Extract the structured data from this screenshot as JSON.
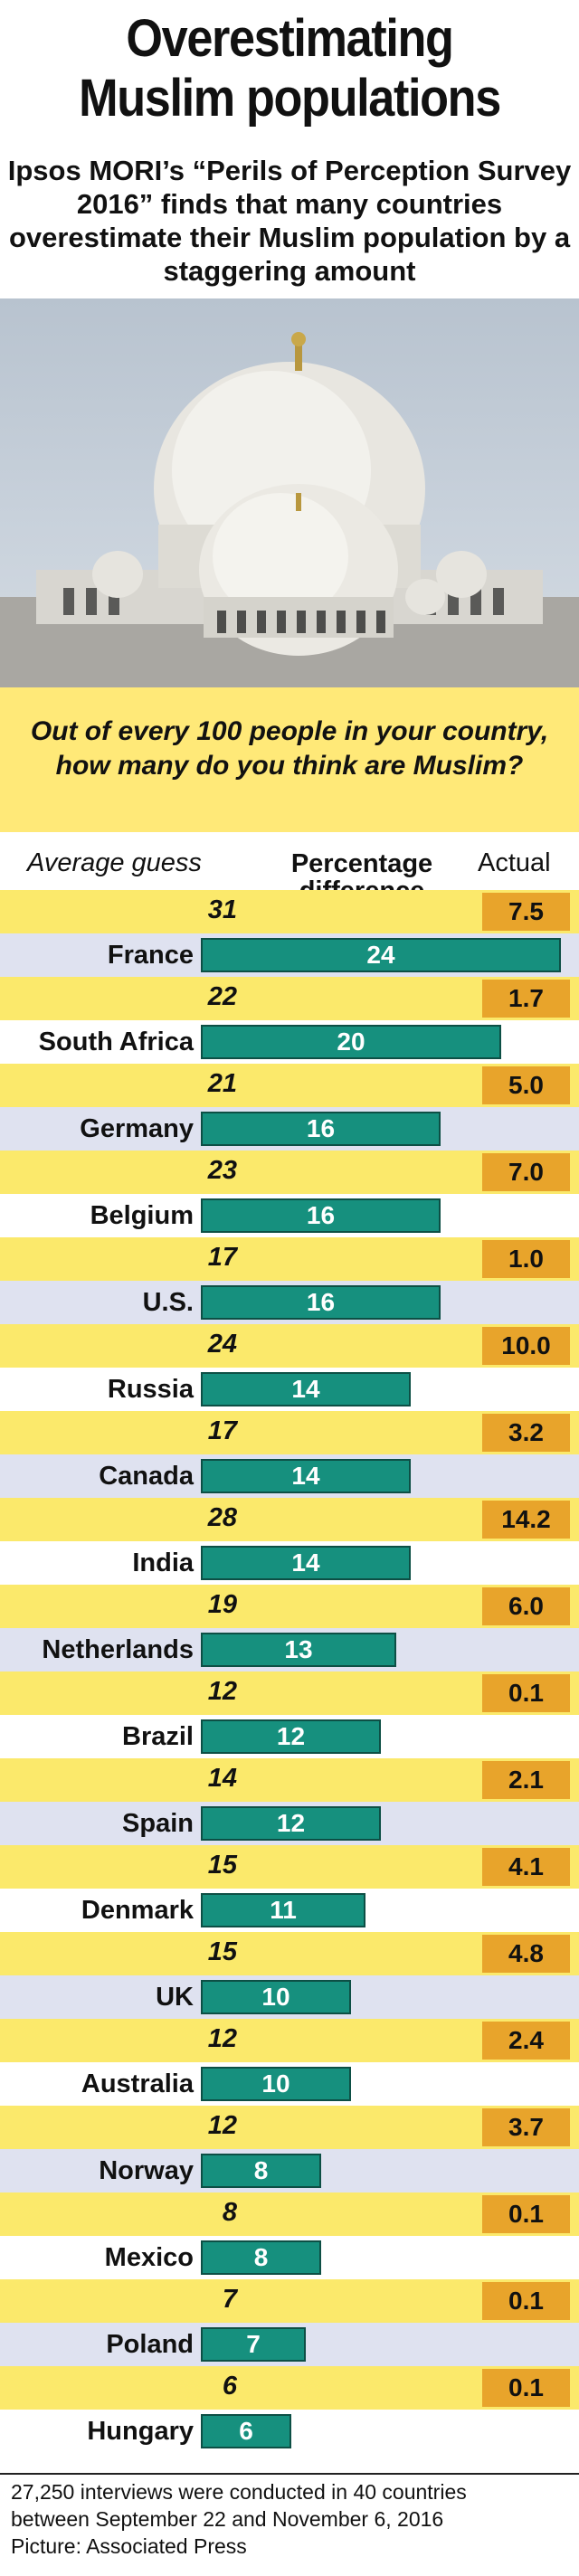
{
  "title_line1": "Overestimating",
  "title_line2": "Muslim populations",
  "subtitle": "Ipsos MORI’s “Perils of Perception Survey 2016” finds that many countries overestimate their Muslim population by a staggering amount",
  "question": "Out of every 100 people in your country, how many do you think are Muslim?",
  "photo_icon": "mosque-dome-photo",
  "colors": {
    "bar": "#16907e",
    "actual": "#e8a42b",
    "guess_row": "#fbe96b",
    "country_row": "#dfe2f0"
  },
  "chart_data": {
    "type": "bar",
    "columns": {
      "guess": "Average guess",
      "difference": "Percentage difference",
      "actual": "Actual"
    },
    "categories": [
      "France",
      "South Africa",
      "Germany",
      "Belgium",
      "U.S.",
      "Russia",
      "Canada",
      "India",
      "Netherlands",
      "Brazil",
      "Spain",
      "Denmark",
      "UK",
      "Australia",
      "Norway",
      "Mexico",
      "Poland",
      "Hungary"
    ],
    "guess": [
      "31",
      "22",
      "21",
      "23",
      "17",
      "24",
      "17",
      "28",
      "19",
      "12",
      "14",
      "15",
      "15",
      "12",
      "12",
      "8",
      "7",
      "6"
    ],
    "difference": [
      24,
      20,
      16,
      16,
      16,
      14,
      14,
      14,
      13,
      12,
      12,
      11,
      10,
      10,
      8,
      8,
      7,
      6
    ],
    "actual": [
      "7.5",
      "1.7",
      "5.0",
      "7.0",
      "1.0",
      "10.0",
      "3.2",
      "14.2",
      "6.0",
      "0.1",
      "2.1",
      "4.1",
      "4.8",
      "2.4",
      "3.7",
      "0.1",
      "0.1",
      "0.1"
    ],
    "xlim": [
      0,
      24
    ]
  },
  "footer": {
    "line1": "27,250 interviews were conducted in 40 countries",
    "line2": "between September 22 and November 6, 2016",
    "line3": "Picture: Associated Press"
  }
}
